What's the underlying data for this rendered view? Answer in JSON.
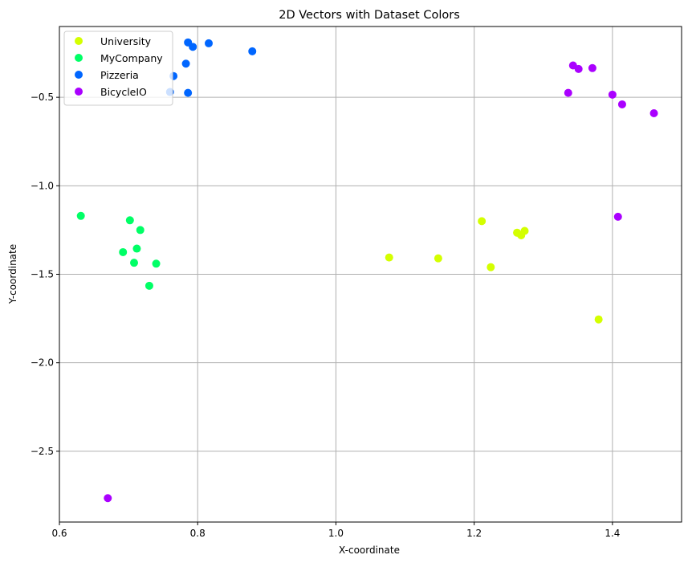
{
  "chart_data": {
    "type": "scatter",
    "title": "2D Vectors with Dataset Colors",
    "xlabel": "X-coordinate",
    "ylabel": "Y-coordinate",
    "xlim": [
      0.6,
      1.5
    ],
    "ylim": [
      -2.9,
      -0.1
    ],
    "xticks": [
      0.6,
      0.8,
      1.0,
      1.2,
      1.4
    ],
    "xtick_labels": [
      "0.6",
      "0.8",
      "1.0",
      "1.2",
      "1.4"
    ],
    "yticks": [
      -2.5,
      -2.0,
      -1.5,
      -1.0,
      -0.5
    ],
    "ytick_labels": [
      "−2.5",
      "−2.0",
      "−1.5",
      "−1.0",
      "−0.5"
    ],
    "grid": true,
    "legend_position": "top-left",
    "series": [
      {
        "name": "University",
        "color": "#d4ff00",
        "points": [
          {
            "x": 1.077,
            "y": -1.405
          },
          {
            "x": 1.148,
            "y": -1.41
          },
          {
            "x": 1.211,
            "y": -1.2
          },
          {
            "x": 1.224,
            "y": -1.46
          },
          {
            "x": 1.262,
            "y": -1.265
          },
          {
            "x": 1.268,
            "y": -1.28
          },
          {
            "x": 1.273,
            "y": -1.255
          },
          {
            "x": 1.38,
            "y": -1.755
          }
        ]
      },
      {
        "name": "MyCompany",
        "color": "#00ff66",
        "points": [
          {
            "x": 0.631,
            "y": -1.17
          },
          {
            "x": 0.692,
            "y": -1.375
          },
          {
            "x": 0.702,
            "y": -1.195
          },
          {
            "x": 0.708,
            "y": -1.435
          },
          {
            "x": 0.712,
            "y": -1.355
          },
          {
            "x": 0.717,
            "y": -1.25
          },
          {
            "x": 0.73,
            "y": -1.565
          },
          {
            "x": 0.74,
            "y": -1.44
          }
        ]
      },
      {
        "name": "Pizzeria",
        "color": "#0066ff",
        "points": [
          {
            "x": 0.76,
            "y": -0.47
          },
          {
            "x": 0.765,
            "y": -0.38
          },
          {
            "x": 0.783,
            "y": -0.31
          },
          {
            "x": 0.786,
            "y": -0.19
          },
          {
            "x": 0.786,
            "y": -0.475
          },
          {
            "x": 0.793,
            "y": -0.215
          },
          {
            "x": 0.816,
            "y": -0.195
          },
          {
            "x": 0.879,
            "y": -0.24
          }
        ]
      },
      {
        "name": "BicycleIO",
        "color": "#aa00ff",
        "points": [
          {
            "x": 0.67,
            "y": -2.765
          },
          {
            "x": 1.336,
            "y": -0.475
          },
          {
            "x": 1.343,
            "y": -0.32
          },
          {
            "x": 1.351,
            "y": -0.34
          },
          {
            "x": 1.371,
            "y": -0.335
          },
          {
            "x": 1.4,
            "y": -0.485
          },
          {
            "x": 1.408,
            "y": -1.175
          },
          {
            "x": 1.414,
            "y": -0.54
          },
          {
            "x": 1.46,
            "y": -0.59
          }
        ]
      }
    ]
  }
}
